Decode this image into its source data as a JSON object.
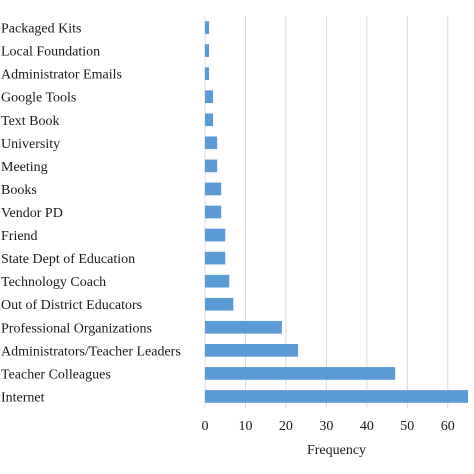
{
  "chart_data": {
    "type": "bar",
    "orientation": "horizontal",
    "categories": [
      "Packaged Kits",
      "Local Foundation",
      "Administrator Emails",
      "Google Tools",
      "Text Book",
      "University",
      "Meeting",
      "Books",
      "Vendor PD",
      "Friend",
      "State Dept of Education",
      "Technology Coach",
      "Out of District Educators",
      "Professional Organizations",
      "Administrators/Teacher Leaders",
      "Teacher Colleagues",
      "Internet"
    ],
    "values": [
      1,
      1,
      1,
      2,
      2,
      3,
      3,
      4,
      4,
      5,
      5,
      6,
      7,
      19,
      23,
      47,
      65
    ],
    "xlabel": "Frequency",
    "ylabel": "",
    "xlim": [
      0,
      65
    ],
    "xticks": [
      0,
      10,
      20,
      30,
      40,
      50,
      60
    ],
    "grid": "vertical",
    "bar_color": "#5b9bd5",
    "grid_color": "#d9d9d9"
  }
}
